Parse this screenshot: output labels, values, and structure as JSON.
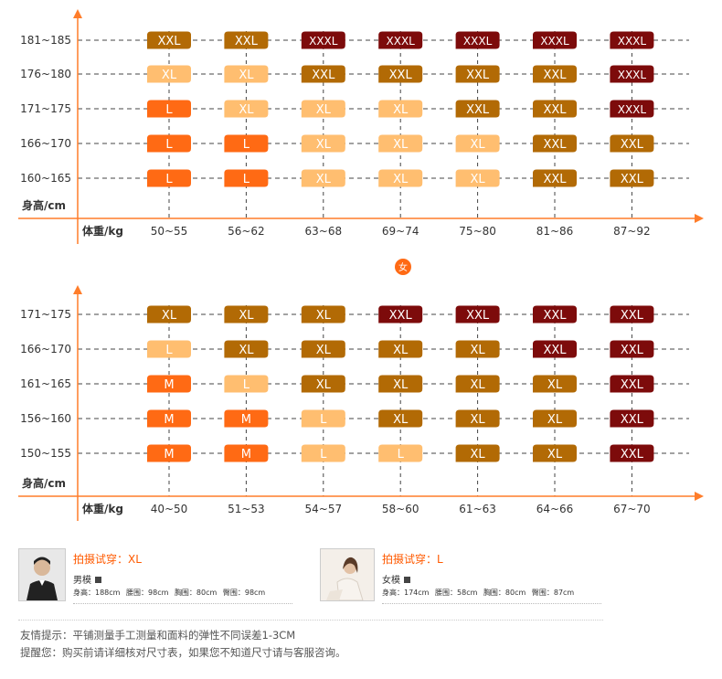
{
  "colors": {
    "axis": "#ff7d2a",
    "grid": "#444444",
    "size_colors": {
      "M": "#ff6a14",
      "L": "#ffbe70",
      "XL": "#b26a05",
      "XXL": "#7d0b0b",
      "XXXL": "#7d0b0b"
    },
    "size_colors_men": {
      "L": "#ff6a14",
      "XL": "#ffbe70",
      "XXL": "#b26a05",
      "XXXL": "#7d0b0b"
    }
  },
  "chart_data": [
    {
      "type": "table",
      "ylabel": "身高/cm",
      "xlabel": "体重/kg",
      "rows": [
        "181~185",
        "176~180",
        "171~175",
        "166~170",
        "160~165"
      ],
      "cols": [
        "50~55",
        "56~62",
        "63~68",
        "69~74",
        "75~80",
        "81~86",
        "87~92"
      ],
      "cells": [
        [
          "XXL",
          "XXL",
          "XXXL",
          "XXXL",
          "XXXL",
          "XXXL",
          "XXXL"
        ],
        [
          "XL",
          "XL",
          "XXL",
          "XXL",
          "XXL",
          "XXL",
          "XXXL"
        ],
        [
          "L",
          "XL",
          "XL",
          "XL",
          "XXL",
          "XXL",
          "XXXL"
        ],
        [
          "L",
          "L",
          "XL",
          "XL",
          "XL",
          "XXL",
          "XXL"
        ],
        [
          "L",
          "L",
          "XL",
          "XL",
          "XL",
          "XXL",
          "XXL"
        ]
      ],
      "cell_colors": [
        [
          "#b26a05",
          "#b26a05",
          "#7d0b0b",
          "#7d0b0b",
          "#7d0b0b",
          "#7d0b0b",
          "#7d0b0b"
        ],
        [
          "#ffbe70",
          "#ffbe70",
          "#b26a05",
          "#b26a05",
          "#b26a05",
          "#b26a05",
          "#7d0b0b"
        ],
        [
          "#ff6a14",
          "#ffbe70",
          "#ffbe70",
          "#ffbe70",
          "#b26a05",
          "#b26a05",
          "#7d0b0b"
        ],
        [
          "#ff6a14",
          "#ff6a14",
          "#ffbe70",
          "#ffbe70",
          "#ffbe70",
          "#b26a05",
          "#b26a05"
        ],
        [
          "#ff6a14",
          "#ff6a14",
          "#ffbe70",
          "#ffbe70",
          "#ffbe70",
          "#b26a05",
          "#b26a05"
        ]
      ]
    },
    {
      "type": "table",
      "ylabel": "身高/cm",
      "xlabel": "体重/kg",
      "rows": [
        "171~175",
        "166~170",
        "161~165",
        "156~160",
        "150~155"
      ],
      "cols": [
        "40~50",
        "51~53",
        "54~57",
        "58~60",
        "61~63",
        "64~66",
        "67~70"
      ],
      "cells": [
        [
          "XL",
          "XL",
          "XL",
          "XXL",
          "XXL",
          "XXL",
          "XXL"
        ],
        [
          "L",
          "XL",
          "XL",
          "XL",
          "XL",
          "XXL",
          "XXL"
        ],
        [
          "M",
          "L",
          "XL",
          "XL",
          "XL",
          "XL",
          "XXL"
        ],
        [
          "M",
          "M",
          "L",
          "XL",
          "XL",
          "XL",
          "XXL"
        ],
        [
          "M",
          "M",
          "L",
          "L",
          "XL",
          "XL",
          "XXL"
        ]
      ],
      "cell_colors": [
        [
          "#b26a05",
          "#b26a05",
          "#b26a05",
          "#7d0b0b",
          "#7d0b0b",
          "#7d0b0b",
          "#7d0b0b"
        ],
        [
          "#ffbe70",
          "#b26a05",
          "#b26a05",
          "#b26a05",
          "#b26a05",
          "#7d0b0b",
          "#7d0b0b"
        ],
        [
          "#ff6a14",
          "#ffbe70",
          "#b26a05",
          "#b26a05",
          "#b26a05",
          "#b26a05",
          "#7d0b0b"
        ],
        [
          "#ff6a14",
          "#ff6a14",
          "#ffbe70",
          "#b26a05",
          "#b26a05",
          "#b26a05",
          "#7d0b0b"
        ],
        [
          "#ff6a14",
          "#ff6a14",
          "#ffbe70",
          "#ffbe70",
          "#b26a05",
          "#b26a05",
          "#7d0b0b"
        ]
      ]
    }
  ],
  "female_badge": "女",
  "models": [
    {
      "title": "拍摄试穿：XL",
      "role": "男模",
      "measurements": [
        "身高：188cm",
        "腰围：98cm",
        "胸围：80cm",
        "臀围：98cm"
      ]
    },
    {
      "title": "拍摄试穿：L",
      "role": "女模",
      "measurements": [
        "身高：174cm",
        "腰围：58cm",
        "胸围：80cm",
        "臀围：87cm"
      ]
    }
  ],
  "notes": [
    "友情提示：平铺测量手工测量和面料的弹性不同误差1-3CM",
    "提醒您：购买前请详细核对尺寸表，如果您不知道尺寸请与客服咨询。"
  ]
}
